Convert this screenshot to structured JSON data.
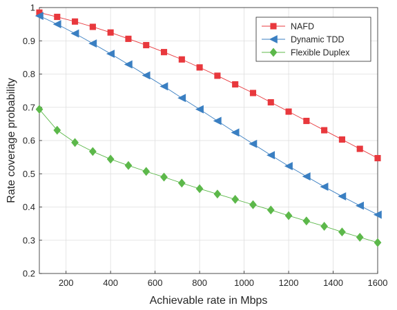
{
  "chart_data": {
    "type": "line",
    "title": "",
    "xlabel": "Achievable rate in Mbps",
    "ylabel": "Rate coverage probability",
    "xlim": [
      80,
      1600
    ],
    "ylim": [
      0.2,
      1.0
    ],
    "xticks": [
      200,
      400,
      600,
      800,
      1000,
      1200,
      1400,
      1600
    ],
    "yticks": [
      0.2,
      0.3,
      0.4,
      0.5,
      0.6,
      0.7,
      0.8,
      0.9,
      1.0
    ],
    "xtick_labels": [
      "200",
      "400",
      "600",
      "800",
      "1000",
      "1200",
      "1400",
      "1600"
    ],
    "ytick_labels": [
      "0.2",
      "0.3",
      "0.4",
      "0.5",
      "0.6",
      "0.7",
      "0.8",
      "0.9",
      "1"
    ],
    "grid": true,
    "legend_position": "top-right",
    "x": [
      80,
      160,
      240,
      320,
      400,
      480,
      560,
      640,
      720,
      800,
      880,
      960,
      1040,
      1120,
      1200,
      1280,
      1360,
      1440,
      1520,
      1600
    ],
    "series": [
      {
        "name": "NAFD",
        "color": "#e8383d",
        "marker": "square",
        "values": [
          0.985,
          0.972,
          0.958,
          0.942,
          0.925,
          0.906,
          0.887,
          0.866,
          0.844,
          0.82,
          0.795,
          0.769,
          0.743,
          0.715,
          0.687,
          0.659,
          0.631,
          0.603,
          0.575,
          0.547
        ]
      },
      {
        "name": "Dynamic TDD",
        "color": "#3a7fc2",
        "marker": "triangle-left",
        "values": [
          0.975,
          0.95,
          0.922,
          0.892,
          0.861,
          0.829,
          0.796,
          0.763,
          0.728,
          0.694,
          0.659,
          0.624,
          0.59,
          0.556,
          0.523,
          0.492,
          0.461,
          0.432,
          0.404,
          0.377
        ]
      },
      {
        "name": "Flexible Duplex",
        "color": "#5cb84a",
        "marker": "diamond",
        "values": [
          0.694,
          0.631,
          0.594,
          0.567,
          0.544,
          0.525,
          0.507,
          0.49,
          0.472,
          0.455,
          0.439,
          0.423,
          0.407,
          0.391,
          0.374,
          0.358,
          0.342,
          0.325,
          0.309,
          0.293
        ]
      }
    ]
  }
}
